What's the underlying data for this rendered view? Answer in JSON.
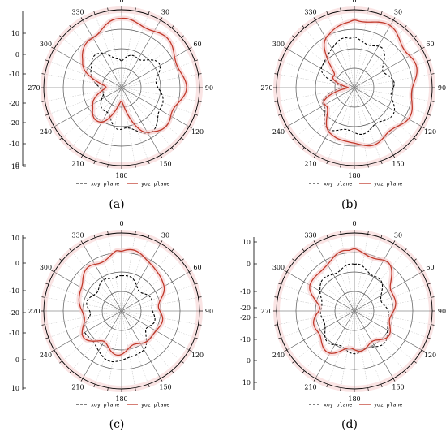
{
  "chart_data": [
    {
      "type": "polar-line",
      "caption": "(a)",
      "angle_labels": [
        "0",
        "30",
        "60",
        "90",
        "120",
        "150",
        "180",
        "210",
        "240",
        "270",
        "300",
        "330"
      ],
      "radial_tick_labels": [
        "10",
        "0",
        "-10",
        "-20",
        "-20",
        "-10",
        "0",
        "10"
      ],
      "series": [
        {
          "name": "xoy plane",
          "angles": [
            0,
            30,
            60,
            90,
            120,
            150,
            180,
            210,
            240,
            270,
            300,
            330
          ],
          "values": [
            -18,
            -14,
            -11,
            -14,
            -9,
            -7,
            -12,
            -16,
            -20,
            -21,
            -13,
            -12
          ]
        },
        {
          "name": "yoz plane",
          "angles": [
            0,
            30,
            60,
            90,
            120,
            150,
            180,
            210,
            240,
            270,
            300,
            330
          ],
          "values": [
            0,
            0,
            -2,
            -2,
            -4,
            -6,
            -25,
            -12,
            -14,
            -24,
            -10,
            -3
          ]
        }
      ]
    },
    {
      "type": "polar-line",
      "caption": "(b)",
      "angle_labels": [
        "0",
        "30",
        "60",
        "90",
        "120",
        "150",
        "180",
        "210",
        "240",
        "270",
        "300",
        "330"
      ],
      "radial_tick_labels": [],
      "series": [
        {
          "name": "xoy plane",
          "angles": [
            0,
            30,
            60,
            90,
            120,
            150,
            180,
            210,
            240,
            270,
            300,
            330
          ],
          "values": [
            -8,
            -9,
            -14,
            -13,
            -10,
            -10,
            -10,
            -9,
            -13,
            -24,
            -14,
            -9
          ]
        },
        {
          "name": "yoz plane",
          "angles": [
            0,
            30,
            60,
            90,
            120,
            150,
            180,
            210,
            240,
            270,
            300,
            330
          ],
          "values": [
            1,
            1,
            -1,
            -3,
            -3,
            -4,
            -4,
            -8,
            -15,
            -26,
            -20,
            -5
          ]
        }
      ]
    },
    {
      "type": "polar-line",
      "caption": "(c)",
      "angle_labels": [
        "0",
        "30",
        "60",
        "90",
        "120",
        "150",
        "180",
        "210",
        "240",
        "270",
        "300",
        "330"
      ],
      "radial_tick_labels": [
        "10",
        "0",
        "-10",
        "-20",
        "-10",
        "0",
        "10"
      ],
      "series": [
        {
          "name": "xoy plane",
          "angles": [
            0,
            30,
            60,
            90,
            120,
            150,
            180,
            210,
            240,
            270,
            300,
            330
          ],
          "values": [
            -13,
            -17,
            -17,
            -15,
            -16,
            -11,
            -7,
            -9,
            -12,
            -15,
            -15,
            -15
          ]
        },
        {
          "name": "yoz plane",
          "angles": [
            0,
            30,
            60,
            90,
            120,
            150,
            180,
            210,
            240,
            270,
            300,
            330
          ],
          "values": [
            -3,
            -4,
            -9,
            -13,
            -11,
            -14,
            -11,
            -13,
            -10,
            -13,
            -8,
            -6
          ]
        }
      ]
    },
    {
      "type": "polar-line",
      "caption": "(d)",
      "angle_labels": [
        "0",
        "30",
        "60",
        "90",
        "120",
        "150",
        "180",
        "210",
        "240",
        "270",
        "300",
        "330"
      ],
      "radial_tick_labels": [
        "10",
        "0",
        "-10",
        "-20",
        "-20",
        "-10",
        "0",
        "10"
      ],
      "series": [
        {
          "name": "xoy plane",
          "angles": [
            0,
            30,
            60,
            90,
            120,
            150,
            180,
            210,
            240,
            270,
            300,
            330
          ],
          "values": [
            -10,
            -11,
            -16,
            -16,
            -12,
            -11,
            -12,
            -12,
            -14,
            -16,
            -12,
            -10
          ]
        },
        {
          "name": "yoz plane",
          "angles": [
            0,
            30,
            60,
            90,
            120,
            150,
            180,
            210,
            240,
            270,
            300,
            330
          ],
          "values": [
            -3,
            -4,
            -10,
            -13,
            -12,
            -13,
            -13,
            -9,
            -10,
            -14,
            -8,
            -5
          ]
        }
      ]
    }
  ],
  "colors": {
    "xoy": "#000000",
    "yoz": "#c0392b",
    "grid": "#b0b0b0",
    "rings": "#555555",
    "halo": "#f5c9c9"
  }
}
